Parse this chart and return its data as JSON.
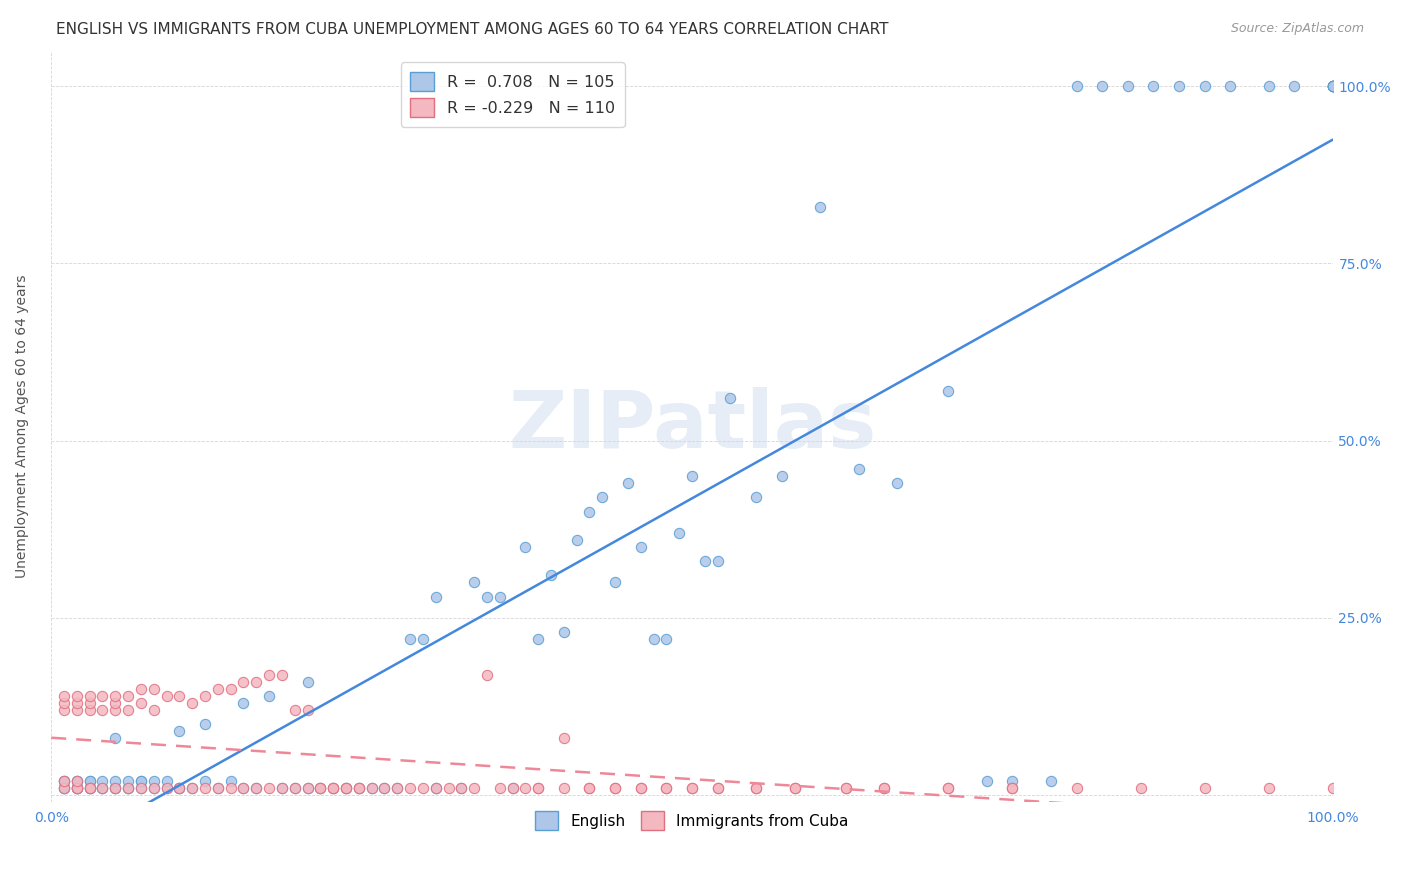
{
  "title": "ENGLISH VS IMMIGRANTS FROM CUBA UNEMPLOYMENT AMONG AGES 60 TO 64 YEARS CORRELATION CHART",
  "source": "Source: ZipAtlas.com",
  "ylabel": "Unemployment Among Ages 60 to 64 years",
  "xlim": [
    0.0,
    1.0
  ],
  "ylim": [
    -0.01,
    1.05
  ],
  "watermark": "ZIPatlas",
  "english_color": "#aec6e8",
  "english_edge": "#5a9fd4",
  "cuba_color": "#f4b8c1",
  "cuba_edge": "#e07080",
  "english_line_color": "#4488dd",
  "cuba_line_color": "#ee8899",
  "background_color": "#ffffff",
  "grid_color": "#cccccc",
  "title_color": "#333333",
  "title_fontsize": 11,
  "axis_tick_color": "#4488dd",
  "english_R": 0.708,
  "english_N": 105,
  "cuba_R": -0.229,
  "cuba_N": 110,
  "english_x": [
    0.01,
    0.01,
    0.01,
    0.01,
    0.02,
    0.02,
    0.02,
    0.02,
    0.02,
    0.03,
    0.03,
    0.03,
    0.03,
    0.04,
    0.04,
    0.04,
    0.05,
    0.05,
    0.05,
    0.05,
    0.06,
    0.06,
    0.06,
    0.07,
    0.07,
    0.07,
    0.08,
    0.08,
    0.09,
    0.09,
    0.1,
    0.1,
    0.1,
    0.11,
    0.12,
    0.12,
    0.13,
    0.14,
    0.15,
    0.15,
    0.16,
    0.17,
    0.18,
    0.19,
    0.2,
    0.2,
    0.21,
    0.22,
    0.23,
    0.24,
    0.25,
    0.26,
    0.27,
    0.28,
    0.29,
    0.3,
    0.3,
    0.32,
    0.33,
    0.34,
    0.35,
    0.36,
    0.37,
    0.38,
    0.39,
    0.4,
    0.41,
    0.42,
    0.43,
    0.44,
    0.45,
    0.46,
    0.47,
    0.48,
    0.49,
    0.5,
    0.51,
    0.52,
    0.53,
    0.55,
    0.57,
    0.6,
    0.63,
    0.66,
    0.7,
    0.73,
    0.75,
    0.78,
    0.8,
    0.82,
    0.84,
    0.86,
    0.88,
    0.9,
    0.92,
    0.95,
    0.97,
    1.0,
    1.0,
    1.0,
    1.0,
    1.0,
    1.0,
    1.0,
    1.0
  ],
  "english_y": [
    0.01,
    0.01,
    0.02,
    0.02,
    0.01,
    0.01,
    0.01,
    0.02,
    0.02,
    0.01,
    0.01,
    0.02,
    0.02,
    0.01,
    0.01,
    0.02,
    0.01,
    0.01,
    0.02,
    0.08,
    0.01,
    0.01,
    0.02,
    0.01,
    0.02,
    0.02,
    0.01,
    0.02,
    0.01,
    0.02,
    0.01,
    0.01,
    0.09,
    0.01,
    0.02,
    0.1,
    0.01,
    0.02,
    0.01,
    0.13,
    0.01,
    0.14,
    0.01,
    0.01,
    0.01,
    0.16,
    0.01,
    0.01,
    0.01,
    0.01,
    0.01,
    0.01,
    0.01,
    0.22,
    0.22,
    0.01,
    0.28,
    0.01,
    0.3,
    0.28,
    0.28,
    0.01,
    0.35,
    0.22,
    0.31,
    0.23,
    0.36,
    0.4,
    0.42,
    0.3,
    0.44,
    0.35,
    0.22,
    0.22,
    0.37,
    0.45,
    0.33,
    0.33,
    0.56,
    0.42,
    0.45,
    0.83,
    0.46,
    0.44,
    0.57,
    0.02,
    0.02,
    0.02,
    1.0,
    1.0,
    1.0,
    1.0,
    1.0,
    1.0,
    1.0,
    1.0,
    1.0,
    1.0,
    1.0,
    1.0,
    1.0,
    1.0,
    1.0,
    1.0,
    1.0
  ],
  "cuba_x": [
    0.01,
    0.01,
    0.01,
    0.01,
    0.01,
    0.02,
    0.02,
    0.02,
    0.02,
    0.02,
    0.02,
    0.03,
    0.03,
    0.03,
    0.03,
    0.03,
    0.04,
    0.04,
    0.04,
    0.05,
    0.05,
    0.05,
    0.05,
    0.06,
    0.06,
    0.06,
    0.07,
    0.07,
    0.07,
    0.08,
    0.08,
    0.08,
    0.09,
    0.09,
    0.1,
    0.1,
    0.11,
    0.11,
    0.12,
    0.12,
    0.13,
    0.13,
    0.14,
    0.14,
    0.15,
    0.15,
    0.16,
    0.16,
    0.17,
    0.17,
    0.18,
    0.18,
    0.19,
    0.19,
    0.2,
    0.2,
    0.21,
    0.21,
    0.22,
    0.22,
    0.23,
    0.23,
    0.24,
    0.24,
    0.25,
    0.26,
    0.27,
    0.28,
    0.29,
    0.3,
    0.31,
    0.32,
    0.33,
    0.34,
    0.35,
    0.36,
    0.37,
    0.38,
    0.4,
    0.42,
    0.44,
    0.46,
    0.48,
    0.5,
    0.52,
    0.55,
    0.58,
    0.62,
    0.65,
    0.7,
    0.75,
    0.8,
    0.85,
    0.9,
    0.95,
    1.0,
    0.38,
    0.4,
    0.42,
    0.44,
    0.46,
    0.48,
    0.5,
    0.52,
    0.55,
    0.58,
    0.62,
    0.65,
    0.7,
    0.75
  ],
  "cuba_y": [
    0.01,
    0.02,
    0.12,
    0.13,
    0.14,
    0.01,
    0.01,
    0.02,
    0.12,
    0.13,
    0.14,
    0.01,
    0.01,
    0.12,
    0.13,
    0.14,
    0.01,
    0.12,
    0.14,
    0.01,
    0.12,
    0.13,
    0.14,
    0.01,
    0.12,
    0.14,
    0.01,
    0.13,
    0.15,
    0.01,
    0.12,
    0.15,
    0.01,
    0.14,
    0.01,
    0.14,
    0.01,
    0.13,
    0.01,
    0.14,
    0.01,
    0.15,
    0.01,
    0.15,
    0.01,
    0.16,
    0.01,
    0.16,
    0.01,
    0.17,
    0.01,
    0.17,
    0.01,
    0.12,
    0.01,
    0.12,
    0.01,
    0.01,
    0.01,
    0.01,
    0.01,
    0.01,
    0.01,
    0.01,
    0.01,
    0.01,
    0.01,
    0.01,
    0.01,
    0.01,
    0.01,
    0.01,
    0.01,
    0.17,
    0.01,
    0.01,
    0.01,
    0.01,
    0.08,
    0.01,
    0.01,
    0.01,
    0.01,
    0.01,
    0.01,
    0.01,
    0.01,
    0.01,
    0.01,
    0.01,
    0.01,
    0.01,
    0.01,
    0.01,
    0.01,
    0.01,
    0.01,
    0.01,
    0.01,
    0.01,
    0.01,
    0.01,
    0.01,
    0.01,
    0.01,
    0.01,
    0.01,
    0.01,
    0.01,
    0.01
  ]
}
